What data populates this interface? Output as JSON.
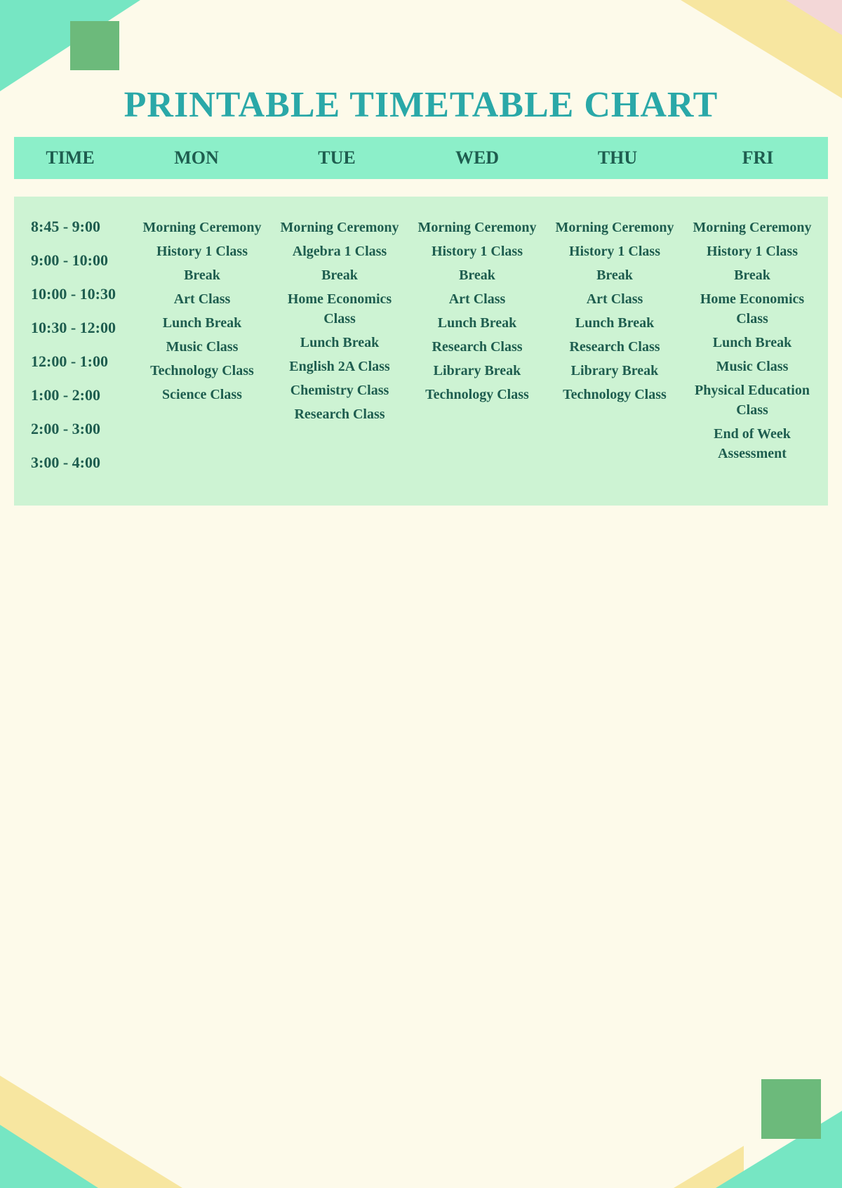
{
  "title": "PRINTABLE TIMETABLE CHART",
  "colors": {
    "page_bg": "#fdfaea",
    "title_color": "#2aa8a8",
    "header_bg": "#8cefc9",
    "body_bg": "#cdf3d3",
    "text_color": "#1e5d4f",
    "deco_mint": "#76e6c3",
    "deco_green": "#6cba7b",
    "deco_yellow": "#f7e6a0",
    "deco_pink": "#f3d7d7"
  },
  "typography": {
    "title_fontsize": 52,
    "header_fontsize": 26,
    "time_fontsize": 22,
    "entry_fontsize": 20,
    "font_family": "Georgia, serif"
  },
  "headers": [
    "TIME",
    "MON",
    "TUE",
    "WED",
    "THU",
    "FRI"
  ],
  "times": [
    "8:45 - 9:00",
    "9:00 - 10:00",
    "10:00 - 10:30",
    "10:30 - 12:00",
    "12:00 - 1:00",
    "1:00 - 2:00",
    "2:00 - 3:00",
    "3:00 - 4:00"
  ],
  "schedule": {
    "mon": [
      "Morning Ceremony",
      "History 1 Class",
      "Break",
      "Art Class",
      "Lunch Break",
      "Music Class",
      "Technology Class",
      "Science Class"
    ],
    "tue": [
      "Morning Ceremony",
      "Algebra 1 Class",
      "Break",
      "Home Economics Class",
      "Lunch Break",
      "English 2A Class",
      "Chemistry Class",
      "Research Class"
    ],
    "wed": [
      "Morning Ceremony",
      "History 1 Class",
      "Break",
      "Art Class",
      "Lunch Break",
      "Research Class",
      "Library Break",
      "Technology Class"
    ],
    "thu": [
      "Morning Ceremony",
      "History 1 Class",
      "Break",
      "Art Class",
      "Lunch Break",
      "Research Class",
      "Library Break",
      "Technology Class"
    ],
    "fri": [
      "Morning Ceremony",
      "History 1 Class",
      "Break",
      "Home Economics Class",
      "Lunch Break",
      "Music Class",
      "Physical Education Class",
      "End of Week Assessment"
    ]
  }
}
